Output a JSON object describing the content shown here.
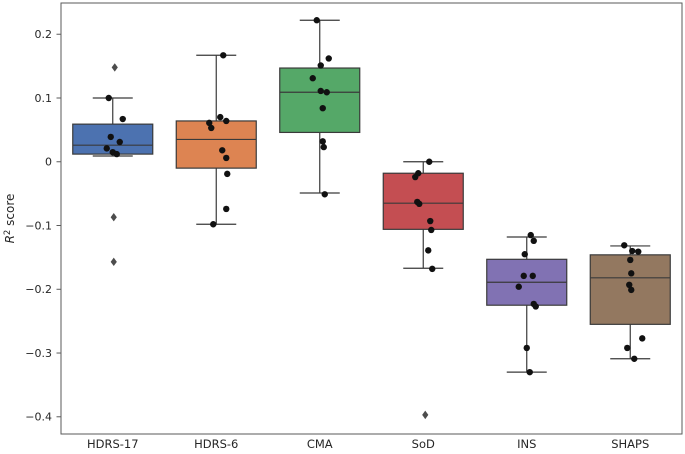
{
  "chart_data": {
    "type": "box",
    "title": "",
    "ylabel": {
      "symbol": "R",
      "sup": "2",
      "rest": " score"
    },
    "xlabel": "",
    "grid": false,
    "legend": "none",
    "ylim": [
      -0.427,
      0.249
    ],
    "yticks": [
      {
        "v": 0.2,
        "label": "0.2"
      },
      {
        "v": 0.1,
        "label": "0.1"
      },
      {
        "v": 0,
        "label": "0"
      },
      {
        "v": -0.1,
        "label": "−0.1"
      },
      {
        "v": -0.2,
        "label": "−0.2"
      },
      {
        "v": -0.3,
        "label": "−0.3"
      },
      {
        "v": -0.4,
        "label": "−0.4"
      }
    ],
    "categories": [
      "HDRS-17",
      "HDRS-6",
      "CMA",
      "SoD",
      "INS",
      "SHAPS"
    ],
    "palette": [
      "#4C72B0",
      "#DD8452",
      "#55A868",
      "#C44E52",
      "#8172B3",
      "#937860"
    ],
    "colors": {
      "box_edge": "#3a3a3a",
      "whisker": "#3a3a3a",
      "spine": "#5a5a5a",
      "text": "#262626",
      "point": "#111111",
      "outlier": "#4d4d4d",
      "background": "#ffffff"
    },
    "series": [
      {
        "label": "HDRS-17",
        "color": "#4C72B0",
        "box": {
          "whisker_low": 0.009,
          "q1": 0.012,
          "median": 0.026,
          "q3": 0.059,
          "whisker_high": 0.1
        },
        "outliers": [
          [
            0.148,
            2
          ],
          [
            -0.087,
            1
          ],
          [
            -0.157,
            1
          ]
        ],
        "points": [
          [
            0.1,
            -4
          ],
          [
            0.067,
            10
          ],
          [
            0.039,
            -2
          ],
          [
            0.031,
            7
          ],
          [
            0.021,
            -6
          ],
          [
            0.015,
            0
          ],
          [
            0.012,
            4
          ]
        ]
      },
      {
        "label": "HDRS-6",
        "color": "#DD8452",
        "box": {
          "whisker_low": -0.098,
          "q1": -0.01,
          "median": 0.035,
          "q3": 0.064,
          "whisker_high": 0.167
        },
        "outliers": [],
        "points": [
          [
            0.167,
            7
          ],
          [
            0.07,
            4
          ],
          [
            0.064,
            10
          ],
          [
            0.061,
            -7
          ],
          [
            0.053,
            -5
          ],
          [
            0.018,
            6
          ],
          [
            0.006,
            10
          ],
          [
            -0.019,
            11
          ],
          [
            -0.074,
            10
          ],
          [
            -0.098,
            -3
          ]
        ]
      },
      {
        "label": "CMA",
        "color": "#55A868",
        "box": {
          "whisker_low": -0.049,
          "q1": 0.046,
          "median": 0.109,
          "q3": 0.147,
          "whisker_high": 0.222
        },
        "outliers": [],
        "points": [
          [
            0.222,
            -3
          ],
          [
            0.162,
            9
          ],
          [
            0.151,
            1
          ],
          [
            0.131,
            -7
          ],
          [
            0.111,
            1
          ],
          [
            0.109,
            7
          ],
          [
            0.084,
            3
          ],
          [
            0.032,
            3
          ],
          [
            0.023,
            4
          ],
          [
            -0.051,
            5
          ]
        ]
      },
      {
        "label": "SoD",
        "color": "#C44E52",
        "box": {
          "whisker_low": -0.167,
          "q1": -0.106,
          "median": -0.065,
          "q3": -0.018,
          "whisker_high": 0.0
        },
        "outliers": [
          [
            -0.397,
            2
          ]
        ],
        "points": [
          [
            0.0,
            6
          ],
          [
            -0.018,
            -5
          ],
          [
            -0.024,
            -8
          ],
          [
            -0.063,
            -6
          ],
          [
            -0.066,
            -4
          ],
          [
            -0.093,
            7
          ],
          [
            -0.107,
            8
          ],
          [
            -0.139,
            5
          ],
          [
            -0.168,
            9
          ]
        ]
      },
      {
        "label": "INS",
        "color": "#8172B3",
        "box": {
          "whisker_low": -0.33,
          "q1": -0.225,
          "median": -0.189,
          "q3": -0.153,
          "whisker_high": -0.118
        },
        "outliers": [],
        "points": [
          [
            -0.115,
            4
          ],
          [
            -0.124,
            7
          ],
          [
            -0.145,
            -2
          ],
          [
            -0.179,
            -3
          ],
          [
            -0.179,
            6
          ],
          [
            -0.196,
            -8
          ],
          [
            -0.223,
            7
          ],
          [
            -0.227,
            9
          ],
          [
            -0.292,
            0
          ],
          [
            -0.33,
            3
          ]
        ]
      },
      {
        "label": "SHAPS",
        "color": "#937860",
        "box": {
          "whisker_low": -0.309,
          "q1": -0.255,
          "median": -0.182,
          "q3": -0.146,
          "whisker_high": -0.132
        },
        "outliers": [],
        "points": [
          [
            -0.131,
            -6
          ],
          [
            -0.14,
            2
          ],
          [
            -0.141,
            8
          ],
          [
            -0.154,
            0
          ],
          [
            -0.175,
            1
          ],
          [
            -0.193,
            -1
          ],
          [
            -0.201,
            1
          ],
          [
            -0.277,
            12
          ],
          [
            -0.292,
            -3
          ],
          [
            -0.309,
            4
          ]
        ]
      }
    ]
  }
}
